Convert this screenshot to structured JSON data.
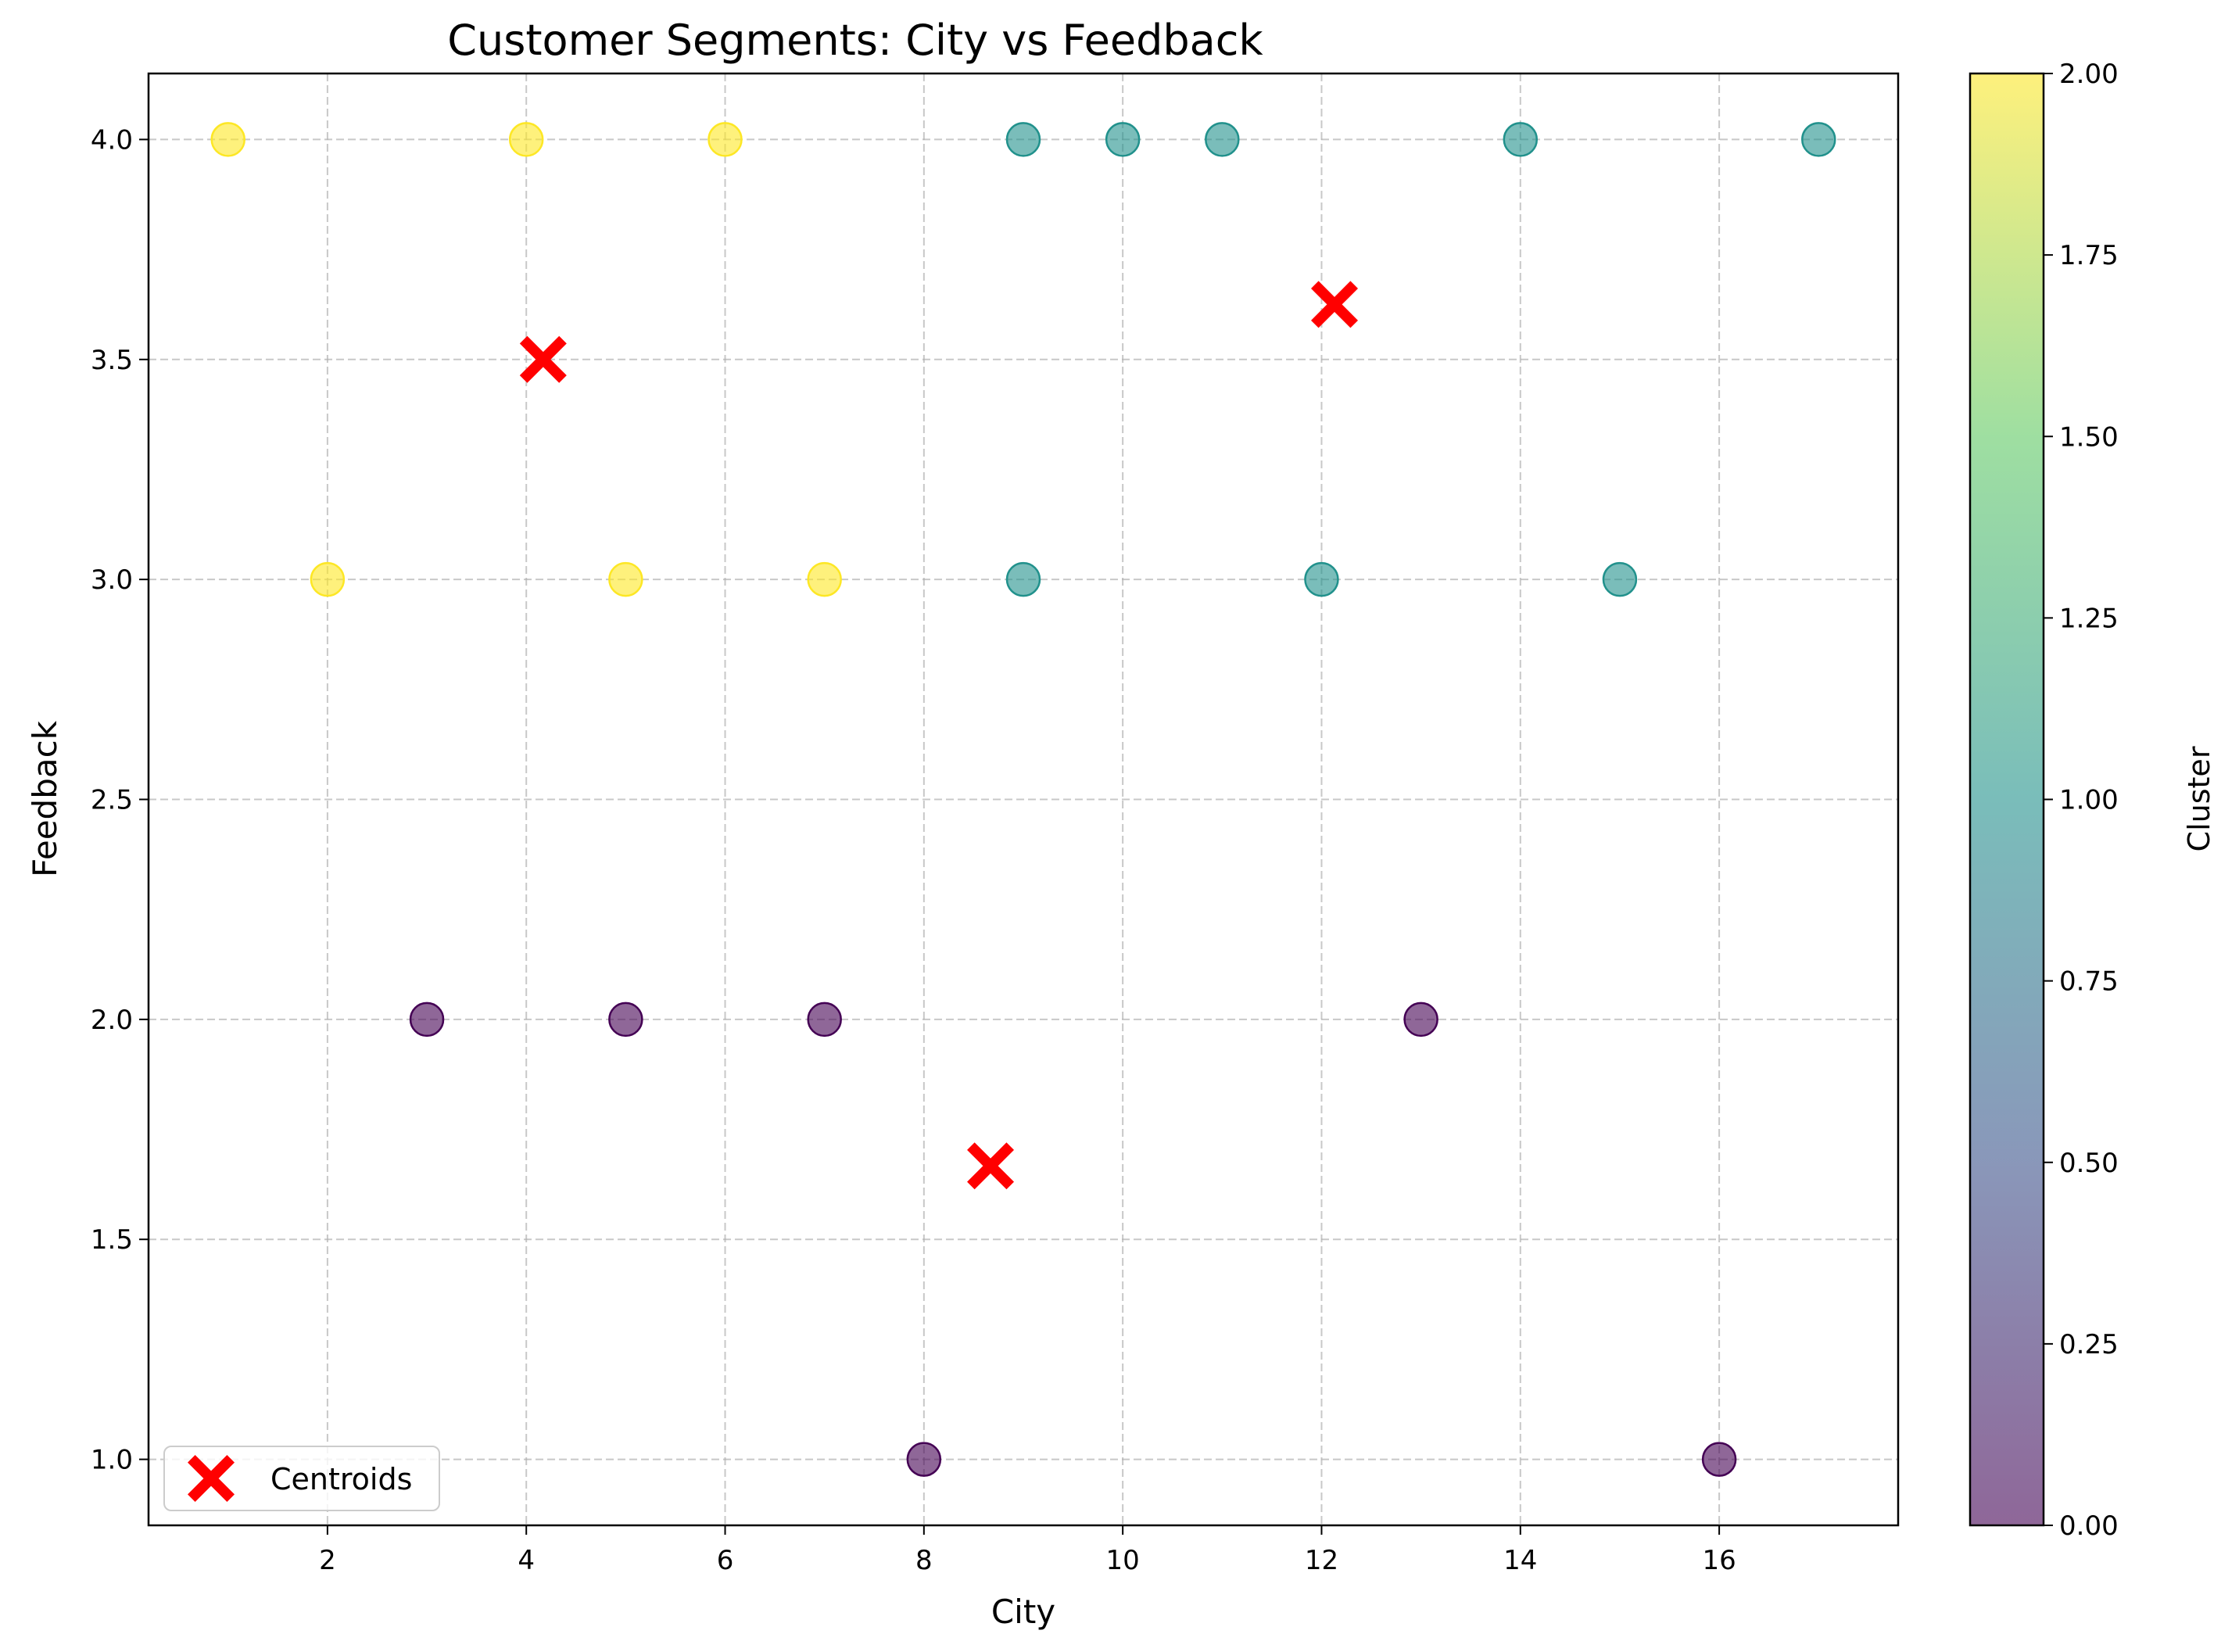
{
  "chart_data": {
    "type": "scatter",
    "title": "Customer Segments: City vs Feedback",
    "xlabel": "City",
    "ylabel": "Feedback",
    "xlim": [
      0.2,
      17.8
    ],
    "ylim": [
      0.85,
      4.15
    ],
    "xticks": [
      2,
      4,
      6,
      8,
      10,
      12,
      14,
      16
    ],
    "xtick_labels": [
      "2",
      "4",
      "6",
      "8",
      "10",
      "12",
      "14",
      "16"
    ],
    "yticks": [
      1.0,
      1.5,
      2.0,
      2.5,
      3.0,
      3.5,
      4.0
    ],
    "ytick_labels": [
      "1.0",
      "1.5",
      "2.0",
      "2.5",
      "3.0",
      "3.5",
      "4.0"
    ],
    "grid": true,
    "grid_style": "dashed",
    "legend_position": "lower-left",
    "colormap": "viridis",
    "colorbar": {
      "label": "Cluster",
      "range": [
        0,
        2
      ],
      "ticks": [
        0.0,
        0.25,
        0.5,
        0.75,
        1.0,
        1.25,
        1.5,
        1.75,
        2.0
      ],
      "tick_labels": [
        "0.00",
        "0.25",
        "0.50",
        "0.75",
        "1.00",
        "1.25",
        "1.50",
        "1.75",
        "2.00"
      ],
      "stops": [
        "#440154",
        "#3b528b",
        "#21918c",
        "#5ec962",
        "#fde725"
      ]
    },
    "cluster_colors": {
      "0": "#440154",
      "1": "#21918c",
      "2": "#fde725"
    },
    "points": [
      {
        "x": 1,
        "y": 4,
        "cluster": 2
      },
      {
        "x": 4,
        "y": 4,
        "cluster": 2
      },
      {
        "x": 6,
        "y": 4,
        "cluster": 2
      },
      {
        "x": 2,
        "y": 3,
        "cluster": 2
      },
      {
        "x": 5,
        "y": 3,
        "cluster": 2
      },
      {
        "x": 7,
        "y": 3,
        "cluster": 2
      },
      {
        "x": 9,
        "y": 4,
        "cluster": 1
      },
      {
        "x": 10,
        "y": 4,
        "cluster": 1
      },
      {
        "x": 11,
        "y": 4,
        "cluster": 1
      },
      {
        "x": 14,
        "y": 4,
        "cluster": 1
      },
      {
        "x": 17,
        "y": 4,
        "cluster": 1
      },
      {
        "x": 9,
        "y": 3,
        "cluster": 1
      },
      {
        "x": 12,
        "y": 3,
        "cluster": 1
      },
      {
        "x": 15,
        "y": 3,
        "cluster": 1
      },
      {
        "x": 3,
        "y": 2,
        "cluster": 0
      },
      {
        "x": 5,
        "y": 2,
        "cluster": 0
      },
      {
        "x": 7,
        "y": 2,
        "cluster": 0
      },
      {
        "x": 13,
        "y": 2,
        "cluster": 0
      },
      {
        "x": 8,
        "y": 1,
        "cluster": 0
      },
      {
        "x": 16,
        "y": 1,
        "cluster": 0
      }
    ],
    "point_alpha": 0.6,
    "centroids": {
      "name": "Centroids",
      "color": "#ff0000",
      "marker": "X",
      "points": [
        {
          "x": 4.17,
          "y": 3.5
        },
        {
          "x": 12.13,
          "y": 3.625
        },
        {
          "x": 8.67,
          "y": 1.667
        }
      ]
    }
  }
}
